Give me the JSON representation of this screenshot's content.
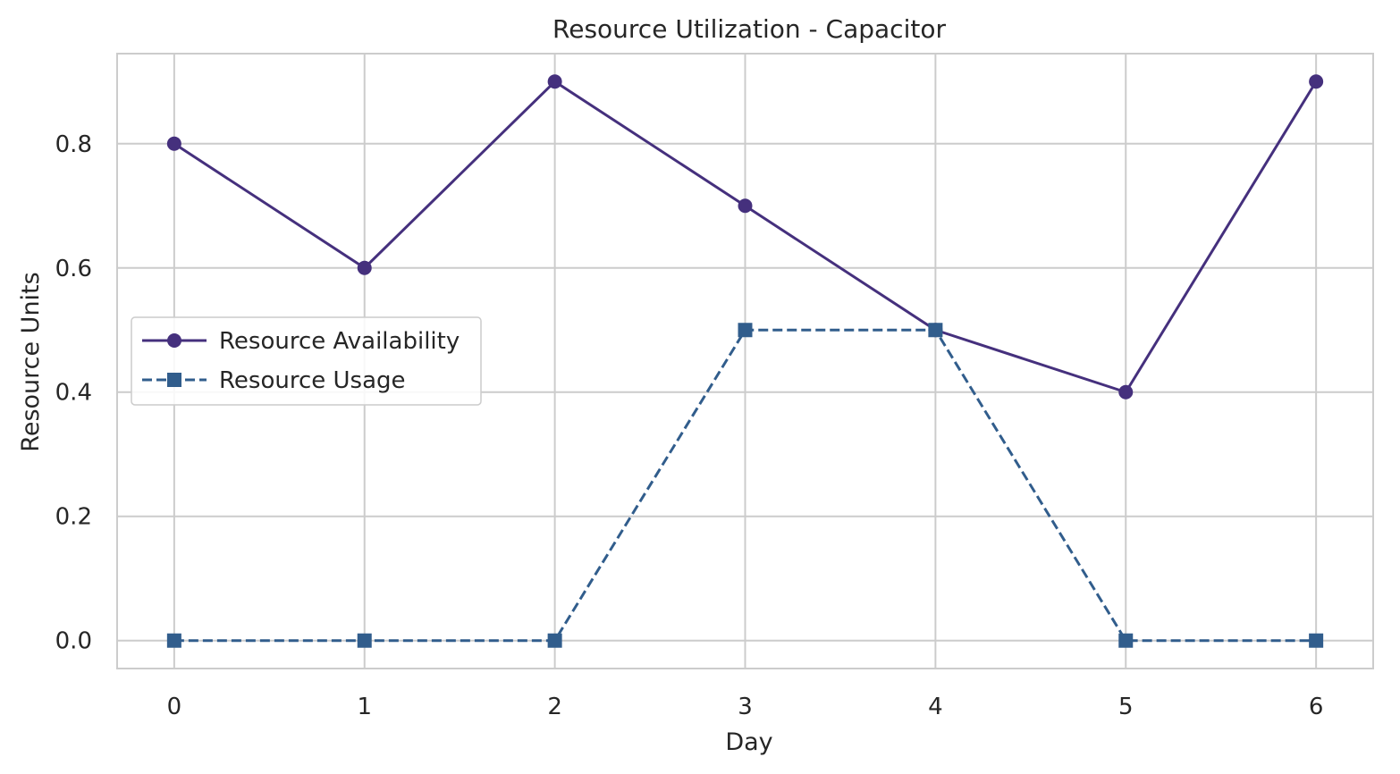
{
  "chart_data": {
    "type": "line",
    "title": "Resource Utilization - Capacitor",
    "xlabel": "Day",
    "ylabel": "Resource Units",
    "x": [
      0,
      1,
      2,
      3,
      4,
      5,
      6
    ],
    "xticks": [
      "0",
      "1",
      "2",
      "3",
      "4",
      "5",
      "6"
    ],
    "yticks": [
      "0.0",
      "0.2",
      "0.4",
      "0.6",
      "0.8"
    ],
    "ytick_values": [
      0,
      0.2,
      0.4,
      0.6,
      0.8
    ],
    "xlim": [
      -0.3,
      6.3
    ],
    "ylim": [
      -0.045,
      0.945
    ],
    "grid": true,
    "legend_position": "center-left",
    "series": [
      {
        "name": "Resource Availability",
        "values": [
          0.8,
          0.6,
          0.9,
          0.7,
          0.5,
          0.4,
          0.9
        ],
        "color": "#45307d",
        "linestyle": "solid",
        "marker": "circle"
      },
      {
        "name": "Resource Usage",
        "values": [
          0,
          0,
          0,
          0.5,
          0.5,
          0,
          0
        ],
        "color": "#315d8c",
        "linestyle": "dashed",
        "marker": "square"
      }
    ]
  }
}
